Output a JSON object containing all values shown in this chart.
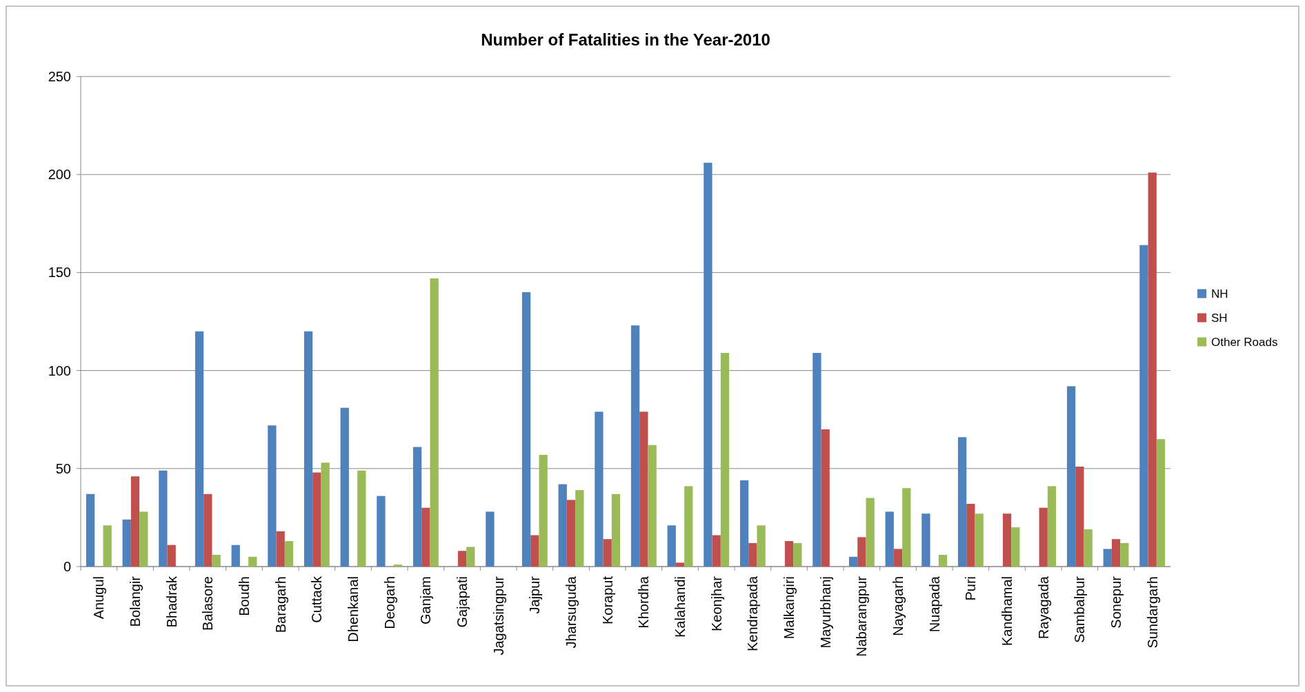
{
  "chart_data": {
    "type": "bar",
    "title": "Number of Fatalities in the Year-2010",
    "categories": [
      "Anugul",
      "Bolangir",
      "Bhadrak",
      "Balasore",
      "Boudh",
      "Baragarh",
      "Cuttack",
      "Dhenkanal",
      "Deogarh",
      "Ganjam",
      "Gajapati",
      "Jagatsingpur",
      "Jajpur",
      "Jharsuguda",
      "Koraput",
      "Khordha",
      "Kalahandi",
      "Keonjhar",
      "Kendrapada",
      "Malkangiri",
      "Mayurbhanj",
      "Nabarangpur",
      "Nayagarh",
      "Nuapada",
      "Puri",
      "Kandhamal",
      "Rayagada",
      "Sambalpur",
      "Sonepur",
      "Sundargarh"
    ],
    "series": [
      {
        "name": "NH",
        "color": "#4f81bd",
        "values": [
          37,
          24,
          49,
          120,
          11,
          72,
          120,
          81,
          36,
          61,
          0,
          28,
          140,
          42,
          79,
          123,
          21,
          206,
          44,
          0,
          109,
          5,
          28,
          27,
          66,
          0,
          0,
          92,
          9,
          164
        ]
      },
      {
        "name": "SH",
        "color": "#c0504d",
        "values": [
          0,
          46,
          11,
          37,
          0,
          18,
          48,
          0,
          0,
          30,
          8,
          0,
          16,
          34,
          14,
          79,
          2,
          16,
          12,
          13,
          70,
          15,
          9,
          0,
          32,
          27,
          30,
          51,
          14,
          201
        ]
      },
      {
        "name": "Other Roads",
        "color": "#9bbb59",
        "values": [
          21,
          28,
          0,
          6,
          5,
          13,
          53,
          49,
          1,
          147,
          10,
          0,
          57,
          39,
          37,
          62,
          41,
          109,
          21,
          12,
          0,
          35,
          40,
          6,
          27,
          20,
          41,
          19,
          12,
          65
        ]
      }
    ],
    "ylim": [
      0,
      250
    ],
    "yticks": [
      0,
      50,
      100,
      150,
      200,
      250
    ],
    "grid": "y",
    "legend": "right"
  }
}
